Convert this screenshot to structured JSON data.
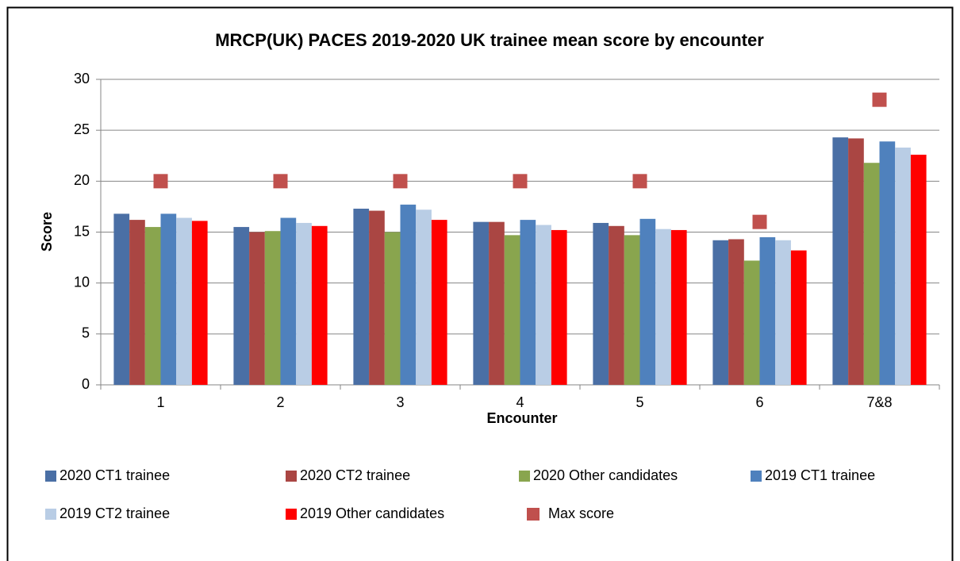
{
  "chart_data": {
    "type": "bar",
    "title": "MRCP(UK) PACES 2019-2020 UK trainee mean score by encounter",
    "x_label": "Encounter",
    "y_label": "Score",
    "categories": [
      "1",
      "2",
      "3",
      "4",
      "5",
      "6",
      "7&8"
    ],
    "series": [
      {
        "name": "2020 CT1 trainee",
        "color": "#4a6fa5",
        "values": [
          16.8,
          15.5,
          17.3,
          16.0,
          15.9,
          14.2,
          24.3
        ]
      },
      {
        "name": "2020 CT2 trainee",
        "color": "#aa4643",
        "values": [
          16.2,
          15.0,
          17.1,
          16.0,
          15.6,
          14.3,
          24.2
        ]
      },
      {
        "name": "2020 Other candidates",
        "color": "#89a54e",
        "values": [
          15.5,
          15.1,
          15.0,
          14.7,
          14.7,
          12.2,
          21.8
        ]
      },
      {
        "name": "2019 CT1 trainee",
        "color": "#4f81bd",
        "values": [
          16.8,
          16.4,
          17.7,
          16.2,
          16.3,
          14.5,
          23.9
        ]
      },
      {
        "name": "2019 CT2 trainee",
        "color": "#b9cde5",
        "values": [
          16.4,
          15.9,
          17.2,
          15.7,
          15.3,
          14.2,
          23.3
        ]
      },
      {
        "name": "2019 Other candidates",
        "color": "#ff0000",
        "values": [
          16.1,
          15.6,
          16.2,
          15.2,
          15.2,
          13.2,
          22.6
        ]
      },
      {
        "name": "Max score",
        "color": "#c0504d",
        "marker": "square",
        "values": [
          20,
          20,
          20,
          20,
          20,
          16,
          28
        ]
      }
    ],
    "ylim": [
      0,
      30
    ],
    "yticks": [
      0,
      5,
      10,
      15,
      20,
      25,
      30
    ],
    "grid": true,
    "legend": "bottom"
  }
}
